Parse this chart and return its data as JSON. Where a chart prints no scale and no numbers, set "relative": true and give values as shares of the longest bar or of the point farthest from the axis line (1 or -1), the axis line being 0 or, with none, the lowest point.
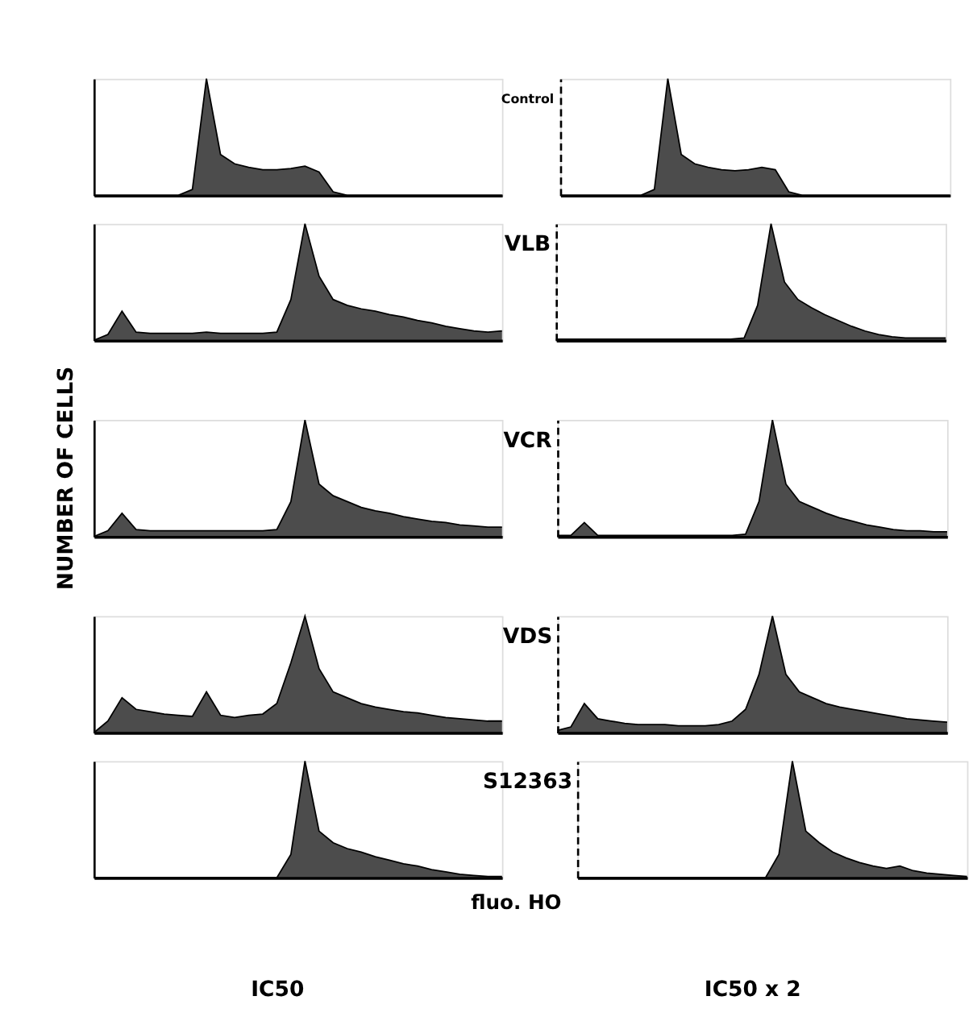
{
  "chart_data": [
    {
      "type": "area",
      "relative": true,
      "title": "Control",
      "color": "#000000",
      "categories": [
        null,
        null,
        null,
        null,
        null,
        null,
        null,
        null,
        null,
        null,
        null,
        null,
        null,
        null,
        null,
        null,
        null,
        null,
        null,
        null,
        null,
        null,
        null,
        null,
        null,
        null,
        null,
        null,
        null,
        null
      ],
      "values": [
        0,
        0,
        0,
        0,
        0,
        0,
        0,
        0.05,
        1,
        0.35,
        0.27,
        0.24,
        0.22,
        0.22,
        0.23,
        0.25,
        0.2,
        0.03,
        0,
        0,
        0,
        0,
        0,
        0,
        0,
        0,
        0,
        0,
        0,
        0
      ]
    },
    {
      "type": "area",
      "relative": true,
      "color": "#000000",
      "categories": [
        null,
        null,
        null,
        null,
        null,
        null,
        null,
        null,
        null,
        null,
        null,
        null,
        null,
        null,
        null,
        null,
        null,
        null,
        null,
        null,
        null,
        null,
        null,
        null,
        null,
        null,
        null,
        null,
        null,
        null
      ],
      "values": [
        0,
        0,
        0,
        0,
        0,
        0,
        0,
        0.05,
        1,
        0.35,
        0.27,
        0.24,
        0.22,
        0.21,
        0.22,
        0.24,
        0.22,
        0.03,
        0,
        0,
        0,
        0,
        0,
        0,
        0,
        0,
        0,
        0,
        0,
        0
      ]
    },
    {
      "type": "area",
      "relative": true,
      "title": "VLB",
      "color": "#000000",
      "categories": [
        null,
        null,
        null,
        null,
        null,
        null,
        null,
        null,
        null,
        null,
        null,
        null,
        null,
        null,
        null,
        null,
        null,
        null,
        null,
        null,
        null,
        null,
        null,
        null,
        null,
        null,
        null,
        null,
        null,
        null
      ],
      "values": [
        0,
        0.05,
        0.25,
        0.07,
        0.06,
        0.06,
        0.06,
        0.06,
        0.07,
        0.06,
        0.06,
        0.06,
        0.06,
        0.07,
        0.35,
        1,
        0.55,
        0.35,
        0.3,
        0.27,
        0.25,
        0.22,
        0.2,
        0.17,
        0.15,
        0.12,
        0.1,
        0.08,
        0.07,
        0.08
      ]
    },
    {
      "type": "area",
      "relative": true,
      "color": "#000000",
      "categories": [
        null,
        null,
        null,
        null,
        null,
        null,
        null,
        null,
        null,
        null,
        null,
        null,
        null,
        null,
        null,
        null,
        null,
        null,
        null,
        null,
        null,
        null,
        null,
        null,
        null,
        null,
        null,
        null,
        null,
        null
      ],
      "values": [
        0.01,
        0.01,
        0.01,
        0.01,
        0.01,
        0.01,
        0.01,
        0.01,
        0.01,
        0.01,
        0.01,
        0.01,
        0.01,
        0.01,
        0.02,
        0.3,
        1,
        0.5,
        0.35,
        0.28,
        0.22,
        0.17,
        0.12,
        0.08,
        0.05,
        0.03,
        0.02,
        0.02,
        0.02,
        0.02
      ]
    },
    {
      "type": "area",
      "relative": true,
      "title": "VCR",
      "ylabel": "NUMBER OF CELLS",
      "color": "#000000",
      "categories": [
        null,
        null,
        null,
        null,
        null,
        null,
        null,
        null,
        null,
        null,
        null,
        null,
        null,
        null,
        null,
        null,
        null,
        null,
        null,
        null,
        null,
        null,
        null,
        null,
        null,
        null,
        null,
        null,
        null,
        null
      ],
      "values": [
        0,
        0.05,
        0.2,
        0.06,
        0.05,
        0.05,
        0.05,
        0.05,
        0.05,
        0.05,
        0.05,
        0.05,
        0.05,
        0.06,
        0.3,
        1,
        0.45,
        0.35,
        0.3,
        0.25,
        0.22,
        0.2,
        0.17,
        0.15,
        0.13,
        0.12,
        0.1,
        0.09,
        0.08,
        0.08
      ]
    },
    {
      "type": "area",
      "relative": true,
      "color": "#000000",
      "categories": [
        null,
        null,
        null,
        null,
        null,
        null,
        null,
        null,
        null,
        null,
        null,
        null,
        null,
        null,
        null,
        null,
        null,
        null,
        null,
        null,
        null,
        null,
        null,
        null,
        null,
        null,
        null,
        null,
        null,
        null
      ],
      "values": [
        0.01,
        0.01,
        0.12,
        0.01,
        0.01,
        0.01,
        0.01,
        0.01,
        0.01,
        0.01,
        0.01,
        0.01,
        0.01,
        0.01,
        0.02,
        0.3,
        1,
        0.45,
        0.3,
        0.25,
        0.2,
        0.16,
        0.13,
        0.1,
        0.08,
        0.06,
        0.05,
        0.05,
        0.04,
        0.04
      ]
    },
    {
      "type": "area",
      "relative": true,
      "title": "VDS",
      "color": "#000000",
      "categories": [
        null,
        null,
        null,
        null,
        null,
        null,
        null,
        null,
        null,
        null,
        null,
        null,
        null,
        null,
        null,
        null,
        null,
        null,
        null,
        null,
        null,
        null,
        null,
        null,
        null,
        null,
        null,
        null,
        null,
        null
      ],
      "values": [
        0,
        0.1,
        0.3,
        0.2,
        0.18,
        0.16,
        0.15,
        0.14,
        0.35,
        0.15,
        0.13,
        0.15,
        0.16,
        0.25,
        0.6,
        1,
        0.55,
        0.35,
        0.3,
        0.25,
        0.22,
        0.2,
        0.18,
        0.17,
        0.15,
        0.13,
        0.12,
        0.11,
        0.1,
        0.1
      ]
    },
    {
      "type": "area",
      "relative": true,
      "color": "#000000",
      "categories": [
        null,
        null,
        null,
        null,
        null,
        null,
        null,
        null,
        null,
        null,
        null,
        null,
        null,
        null,
        null,
        null,
        null,
        null,
        null,
        null,
        null,
        null,
        null,
        null,
        null,
        null,
        null,
        null,
        null,
        null
      ],
      "values": [
        0.02,
        0.05,
        0.25,
        0.12,
        0.1,
        0.08,
        0.07,
        0.07,
        0.07,
        0.06,
        0.06,
        0.06,
        0.07,
        0.1,
        0.2,
        0.5,
        1,
        0.5,
        0.35,
        0.3,
        0.25,
        0.22,
        0.2,
        0.18,
        0.16,
        0.14,
        0.12,
        0.11,
        0.1,
        0.09
      ]
    },
    {
      "type": "area",
      "relative": true,
      "title": "S12363",
      "xlabel": "fluo. HO",
      "annotations": [
        "IC50"
      ],
      "color": "#000000",
      "categories": [
        null,
        null,
        null,
        null,
        null,
        null,
        null,
        null,
        null,
        null,
        null,
        null,
        null,
        null,
        null,
        null,
        null,
        null,
        null,
        null,
        null,
        null,
        null,
        null,
        null,
        null,
        null,
        null,
        null,
        null
      ],
      "values": [
        0,
        0,
        0,
        0,
        0,
        0,
        0,
        0,
        0,
        0,
        0,
        0,
        0,
        0,
        0.2,
        1,
        0.4,
        0.3,
        0.25,
        0.22,
        0.18,
        0.15,
        0.12,
        0.1,
        0.07,
        0.05,
        0.03,
        0.02,
        0.01,
        0.01
      ]
    },
    {
      "type": "area",
      "relative": true,
      "annotations": [
        "IC50 x 2"
      ],
      "color": "#000000",
      "categories": [
        null,
        null,
        null,
        null,
        null,
        null,
        null,
        null,
        null,
        null,
        null,
        null,
        null,
        null,
        null,
        null,
        null,
        null,
        null,
        null,
        null,
        null,
        null,
        null,
        null,
        null,
        null,
        null,
        null,
        null
      ],
      "values": [
        0,
        0,
        0,
        0,
        0,
        0,
        0,
        0,
        0,
        0,
        0,
        0,
        0,
        0,
        0,
        0.2,
        1,
        0.4,
        0.3,
        0.22,
        0.17,
        0.13,
        0.1,
        0.08,
        0.1,
        0.06,
        0.04,
        0.03,
        0.02,
        0.01
      ]
    }
  ]
}
